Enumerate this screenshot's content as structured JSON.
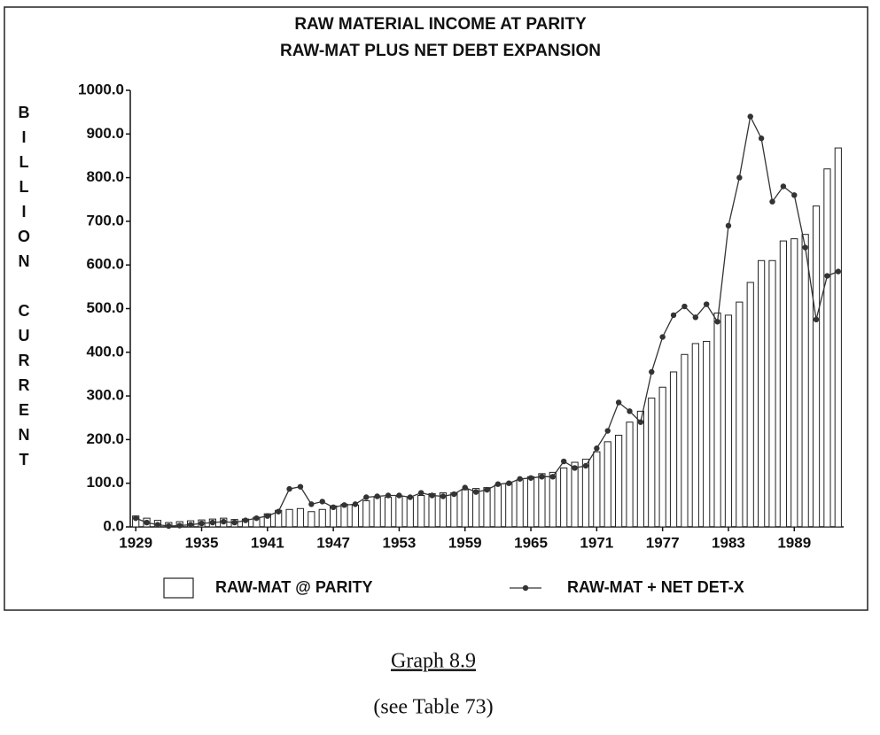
{
  "chart_data": {
    "type": "bar",
    "title": "RAW MATERIAL INCOME AT PARITY",
    "subtitle": "RAW-MAT PLUS NET DEBT EXPANSION",
    "y_label": "BILLION CURRENT",
    "categories": [
      1929,
      1930,
      1931,
      1932,
      1933,
      1934,
      1935,
      1936,
      1937,
      1938,
      1939,
      1940,
      1941,
      1942,
      1943,
      1944,
      1945,
      1946,
      1947,
      1948,
      1949,
      1950,
      1951,
      1952,
      1953,
      1954,
      1955,
      1956,
      1957,
      1958,
      1959,
      1960,
      1961,
      1962,
      1963,
      1964,
      1965,
      1966,
      1967,
      1968,
      1969,
      1970,
      1971,
      1972,
      1973,
      1974,
      1975,
      1976,
      1977,
      1978,
      1979,
      1980,
      1981,
      1982,
      1983,
      1984,
      1985,
      1986,
      1987,
      1988,
      1989,
      1990,
      1991,
      1992,
      1993
    ],
    "xticks": [
      1929,
      1935,
      1941,
      1947,
      1953,
      1959,
      1965,
      1971,
      1977,
      1983,
      1989
    ],
    "series": [
      {
        "name": "RAW-MAT @ PARITY",
        "type": "bar",
        "color": "#ffffff",
        "values": [
          25,
          20,
          15,
          10,
          12,
          14,
          16,
          18,
          20,
          17,
          18,
          22,
          30,
          38,
          40,
          42,
          35,
          40,
          48,
          52,
          50,
          60,
          68,
          68,
          70,
          68,
          72,
          76,
          78,
          78,
          85,
          88,
          90,
          96,
          100,
          108,
          115,
          122,
          125,
          135,
          148,
          155,
          172,
          195,
          210,
          240,
          265,
          295,
          320,
          355,
          395,
          420,
          425,
          490,
          485,
          515,
          560,
          610,
          610,
          655,
          660,
          670,
          735,
          820,
          868
        ]
      },
      {
        "name": "RAW-MAT + NET DET-X",
        "type": "line",
        "color": "#333333",
        "values": [
          20,
          10,
          5,
          2,
          3,
          5,
          8,
          10,
          12,
          10,
          15,
          20,
          25,
          35,
          87,
          92,
          52,
          58,
          45,
          50,
          52,
          68,
          70,
          72,
          72,
          68,
          78,
          72,
          70,
          75,
          90,
          80,
          85,
          98,
          100,
          110,
          112,
          115,
          115,
          150,
          135,
          140,
          180,
          220,
          285,
          265,
          240,
          355,
          435,
          485,
          505,
          480,
          510,
          470,
          690,
          800,
          940,
          890,
          745,
          780,
          760,
          640,
          475,
          575,
          585
        ]
      }
    ],
    "ylim": [
      0,
      1000
    ],
    "yticks": [
      {
        "value": 0,
        "label": "0.0"
      },
      {
        "value": 100,
        "label": "100.0"
      },
      {
        "value": 200,
        "label": "200.0"
      },
      {
        "value": 300,
        "label": "300.0"
      },
      {
        "value": 400,
        "label": "400.0"
      },
      {
        "value": 500,
        "label": "500.0"
      },
      {
        "value": 600,
        "label": "600.0"
      },
      {
        "value": 700,
        "label": "700.0"
      },
      {
        "value": 800,
        "label": "800.0"
      },
      {
        "value": 900,
        "label": "900.0"
      },
      {
        "value": 1000,
        "label": "1000.0"
      }
    ],
    "grid": false,
    "legend": "bottom"
  },
  "caption": {
    "title": "Graph 8.9",
    "note": "(see Table 73)"
  }
}
